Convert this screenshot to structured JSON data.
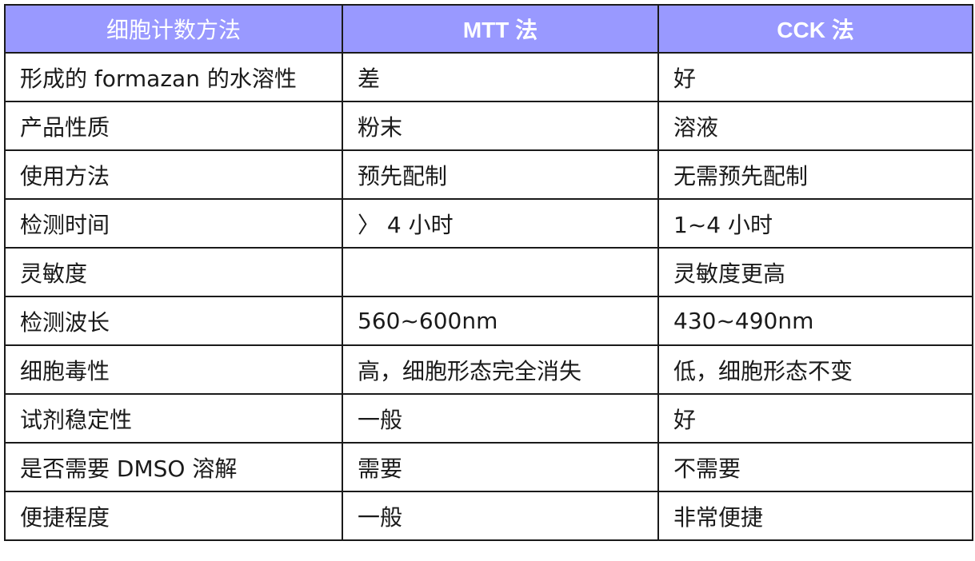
{
  "header_color": "#9999ff",
  "headers": [
    "细胞计数方法",
    "MTT 法",
    "CCK 法"
  ],
  "rows": [
    [
      "形成的 formazan 的水溶性",
      "差",
      "好"
    ],
    [
      "产品性质",
      "粉末",
      "溶液"
    ],
    [
      "使用方法",
      "预先配制",
      "无需预先配制"
    ],
    [
      "检测时间",
      "〉 4 小时",
      "1~4 小时"
    ],
    [
      "灵敏度",
      "",
      "灵敏度更高"
    ],
    [
      "检测波长",
      "560~600nm",
      "430~490nm"
    ],
    [
      "细胞毒性",
      "高，细胞形态完全消失",
      "低，细胞形态不变"
    ],
    [
      "试剂稳定性",
      "一般",
      "好"
    ],
    [
      "是否需要 DMSO 溶解",
      "需要",
      "不需要"
    ],
    [
      "便捷程度",
      "一般",
      "非常便捷"
    ]
  ]
}
